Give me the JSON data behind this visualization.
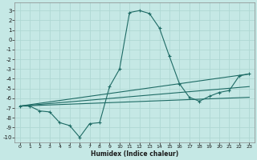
{
  "xlabel": "Humidex (Indice chaleur)",
  "background_color": "#c5e8e5",
  "grid_color": "#afd8d4",
  "line_color": "#1e6b65",
  "ylim": [
    -10.5,
    3.8
  ],
  "xlim": [
    -0.5,
    23.5
  ],
  "yticks": [
    3,
    2,
    1,
    0,
    -1,
    -2,
    -3,
    -4,
    -5,
    -6,
    -7,
    -8,
    -9,
    -10
  ],
  "xticks": [
    0,
    1,
    2,
    3,
    4,
    5,
    6,
    7,
    8,
    9,
    10,
    11,
    12,
    13,
    14,
    15,
    16,
    17,
    18,
    19,
    20,
    21,
    22,
    23
  ],
  "line1_x": [
    0,
    1,
    2,
    3,
    4,
    5,
    6,
    7,
    8,
    9,
    10,
    11,
    12,
    13,
    14,
    15,
    16,
    17,
    18,
    19,
    20,
    21,
    22,
    23
  ],
  "line1_y": [
    -6.8,
    -6.8,
    -7.3,
    -7.4,
    -8.5,
    -8.8,
    -10.0,
    -8.6,
    -8.5,
    -4.8,
    -3.0,
    2.8,
    3.0,
    2.7,
    1.2,
    -1.7,
    -4.5,
    -5.9,
    -6.3,
    -5.8,
    -5.4,
    -5.2,
    -3.7,
    -3.5
  ],
  "line2_x": [
    0,
    23
  ],
  "line2_y": [
    -6.8,
    -3.5
  ],
  "line3_x": [
    0,
    23
  ],
  "line3_y": [
    -6.8,
    -4.8
  ],
  "line4_x": [
    0,
    23
  ],
  "line4_y": [
    -6.8,
    -5.9
  ]
}
